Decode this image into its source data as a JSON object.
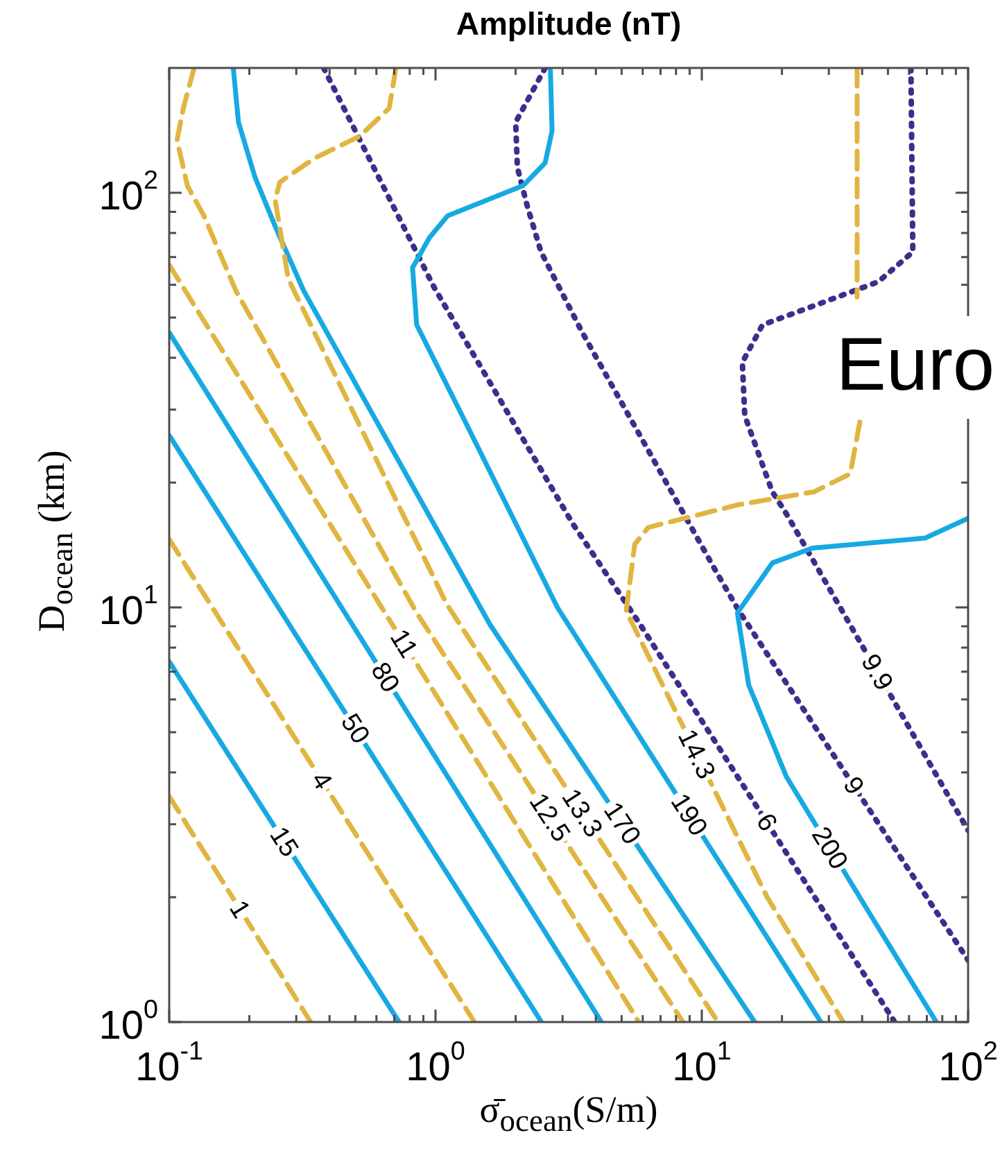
{
  "chart_data": {
    "type": "line",
    "title": "Amplitude (nT)",
    "xlabel": "σ̄$_{ocean}$(S/m)",
    "ylabel": "D$_{ocean}$ (km)",
    "log": "xy",
    "xlim": [
      0.1,
      100
    ],
    "ylim": [
      1,
      200
    ],
    "xticks": [
      {
        "value": 0.1,
        "label": "10$^{-1}$"
      },
      {
        "value": 0.2,
        "label": null
      },
      {
        "value": 0.3,
        "label": null
      },
      {
        "value": 0.4,
        "label": null
      },
      {
        "value": 0.5,
        "label": null
      },
      {
        "value": 0.6,
        "label": null
      },
      {
        "value": 0.7,
        "label": null
      },
      {
        "value": 0.8,
        "label": null
      },
      {
        "value": 0.9,
        "label": null
      },
      {
        "value": 1,
        "label": "10$^{0}$"
      },
      {
        "value": 2,
        "label": null
      },
      {
        "value": 3,
        "label": null
      },
      {
        "value": 4,
        "label": null
      },
      {
        "value": 5,
        "label": null
      },
      {
        "value": 6,
        "label": null
      },
      {
        "value": 7,
        "label": null
      },
      {
        "value": 8,
        "label": null
      },
      {
        "value": 9,
        "label": null
      },
      {
        "value": 10,
        "label": "10$^{1}$"
      },
      {
        "value": 20,
        "label": null
      },
      {
        "value": 30,
        "label": null
      },
      {
        "value": 40,
        "label": null
      },
      {
        "value": 50,
        "label": null
      },
      {
        "value": 60,
        "label": null
      },
      {
        "value": 70,
        "label": null
      },
      {
        "value": 80,
        "label": null
      },
      {
        "value": 90,
        "label": null
      },
      {
        "value": 100,
        "label": "10$^{2}$"
      }
    ],
    "yticks": [
      {
        "value": 1,
        "label": "10$^{0}$"
      },
      {
        "value": 2,
        "label": null
      },
      {
        "value": 3,
        "label": null
      },
      {
        "value": 4,
        "label": null
      },
      {
        "value": 5,
        "label": null
      },
      {
        "value": 6,
        "label": null
      },
      {
        "value": 7,
        "label": null
      },
      {
        "value": 8,
        "label": null
      },
      {
        "value": 9,
        "label": null
      },
      {
        "value": 10,
        "label": "10$^{1}$"
      },
      {
        "value": 20,
        "label": null
      },
      {
        "value": 30,
        "label": null
      },
      {
        "value": 40,
        "label": null
      },
      {
        "value": 50,
        "label": null
      },
      {
        "value": 60,
        "label": null
      },
      {
        "value": 70,
        "label": null
      },
      {
        "value": 80,
        "label": null
      },
      {
        "value": 90,
        "label": null
      },
      {
        "value": 100,
        "label": "10$^{2}$"
      }
    ],
    "annotations": [
      "Euro"
    ],
    "series": [
      {
        "name": "1",
        "color": "#e0b540",
        "line_style": "dashed",
        "x": [
          0.1,
          0.34
        ],
        "values": [
          3.5,
          1
        ]
      },
      {
        "name": "15",
        "color": "#17a9e1",
        "line_style": "solid",
        "x": [
          0.1,
          0.73
        ],
        "values": [
          7.4,
          1
        ]
      },
      {
        "name": "4",
        "color": "#e0b540",
        "line_style": "dashed",
        "x": [
          0.1,
          1.4
        ],
        "values": [
          14.6,
          1
        ]
      },
      {
        "name": "50",
        "color": "#17a9e1",
        "line_style": "solid",
        "x": [
          0.1,
          2.5
        ],
        "values": [
          26,
          1
        ]
      },
      {
        "name": "80",
        "color": "#17a9e1",
        "line_style": "solid",
        "x": [
          0.1,
          4.2
        ],
        "values": [
          46,
          1
        ]
      },
      {
        "name": "11",
        "color": "#e0b540",
        "line_style": "dashed",
        "x": [
          0.1,
          5.8
        ],
        "values": [
          67,
          1
        ]
      },
      {
        "name": "12.5",
        "color": "#e0b540",
        "line_style": "dashed",
        "x": [
          0.124,
          0.113,
          0.107,
          0.117,
          0.135,
          0.178,
          0.85,
          8.5
        ],
        "values": [
          200,
          160,
          134,
          104,
          88,
          58,
          9.7,
          1
        ]
      },
      {
        "name": "13.3",
        "color": "#e0b540",
        "line_style": "dashed",
        "x": [
          0.71,
          0.67,
          0.52,
          0.35,
          0.26,
          0.25,
          0.28,
          1.1,
          11.5
        ],
        "values": [
          200,
          160,
          137,
          121,
          106,
          96,
          62,
          10.2,
          1
        ]
      },
      {
        "name": "170",
        "color": "#17a9e1",
        "line_style": "solid",
        "x": [
          0.174,
          0.182,
          0.21,
          0.25,
          0.32,
          1.6,
          15.8
        ],
        "values": [
          200,
          148,
          109,
          83,
          58,
          9.1,
          1
        ]
      },
      {
        "name": "190",
        "color": "#17a9e1",
        "line_style": "solid",
        "x": [
          2.7,
          2.74,
          2.58,
          2.13,
          1.11,
          0.95,
          0.82,
          0.85,
          1.26,
          2.87,
          28
        ],
        "values": [
          200,
          141,
          118,
          104,
          88,
          78,
          66,
          48,
          29,
          10,
          1
        ]
      },
      {
        "name": "200",
        "color": "#17a9e1",
        "line_style": "solid",
        "x": [
          100,
          69,
          26,
          18.4,
          13.6,
          15,
          20.8,
          44,
          76
        ],
        "values": [
          16.4,
          14.7,
          13.9,
          12.8,
          9.7,
          6.5,
          3.9,
          1.77,
          1
        ]
      },
      {
        "name": "14.3",
        "color": "#e0b540",
        "line_style": "dashed",
        "x": [
          38.3,
          38.3,
          38.5,
          39.2,
          36.1,
          26.4,
          13.8,
          6.3,
          5.6,
          5.2,
          17.6,
          34
        ],
        "values": [
          200,
          56,
          null,
          28,
          21,
          19,
          17.7,
          15.6,
          14.2,
          9.8,
          2,
          1
        ]
      },
      {
        "name": "6",
        "color": "#3f2d8c",
        "line_style": "dotted",
        "x": [
          0.38,
          0.99,
          3.28,
          5.8,
          53
        ],
        "values": [
          200,
          59,
          15.9,
          9.2,
          1
        ]
      },
      {
        "name": "9",
        "color": "#3f2d8c",
        "line_style": "dotted",
        "x": [
          2.58,
          2,
          2.03,
          2.21,
          2.49,
          3.56,
          11.4,
          13.8,
          100
        ],
        "values": [
          200,
          148,
          115,
          93,
          72,
          46,
          12.1,
          9.8,
          1.41
        ]
      },
      {
        "name": "9.9",
        "color": "#3f2d8c",
        "line_style": "dotted",
        "x": [
          61,
          62,
          46,
          16.9,
          14.2,
          14.5,
          18.4,
          20.8,
          100
        ],
        "values": [
          200,
          72,
          61,
          48,
          39,
          29,
          19,
          16.8,
          2.9
        ]
      }
    ]
  }
}
